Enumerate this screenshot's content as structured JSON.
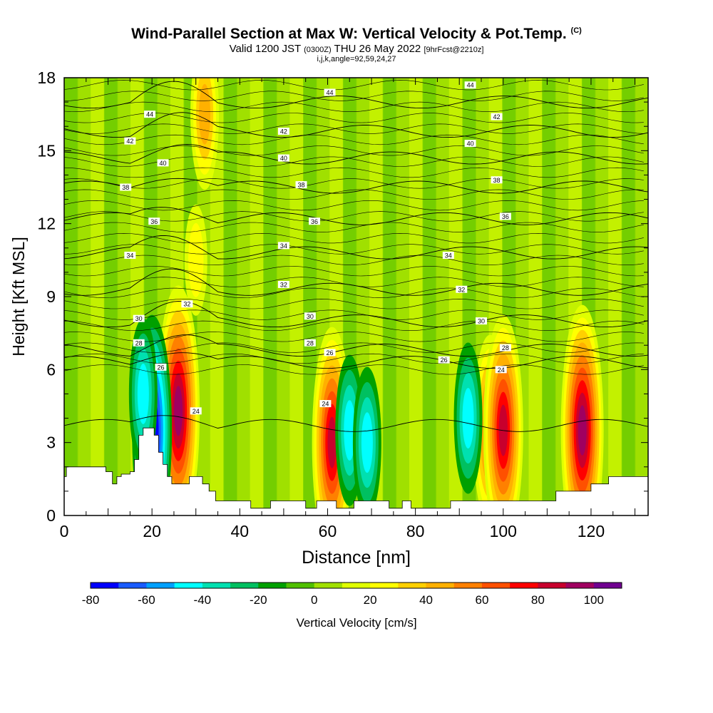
{
  "header": {
    "title": "Wind-Parallel Section at Max W: Vertical Velocity & Pot.Temp.",
    "copyright": "(C)",
    "valid_prefix": "Valid 1200 JST",
    "valid_utc": "(0300Z)",
    "valid_date": "THU 26 May 2022",
    "forecast": "[9hrFcst@2210z]",
    "indices": "i,j,k,angle=92,59,24,27"
  },
  "chart_data": {
    "type": "heatmap",
    "xlabel": "Distance [nm]",
    "ylabel": "Height [Kft MSL]",
    "xlim": [
      0,
      133
    ],
    "ylim": [
      0,
      18
    ],
    "x_ticks": [
      "0",
      "20",
      "40",
      "60",
      "80",
      "100",
      "120"
    ],
    "y_ticks": [
      "0",
      "3",
      "6",
      "9",
      "12",
      "15",
      "18"
    ],
    "colorbar": {
      "label": "Vertical Velocity [cm/s]",
      "tick_labels": [
        "-80",
        "-60",
        "-40",
        "-20",
        "0",
        "20",
        "40",
        "60",
        "80",
        "100"
      ],
      "levels": [
        -80,
        -70,
        -60,
        -50,
        -40,
        -30,
        -20,
        -10,
        0,
        10,
        20,
        30,
        40,
        50,
        60,
        70,
        80,
        90,
        100,
        110
      ],
      "colors": [
        "#0000ff",
        "#1a5cff",
        "#00a0ff",
        "#00ffff",
        "#00e0b0",
        "#00c060",
        "#00a000",
        "#50c000",
        "#a0e000",
        "#e0ff00",
        "#ffff00",
        "#ffd000",
        "#ffb000",
        "#ff8000",
        "#ff5000",
        "#ff0000",
        "#c8002d",
        "#a00060",
        "#700090"
      ]
    },
    "velocity_cores": [
      {
        "x": 26,
        "height": 4.3,
        "w": 90
      },
      {
        "x": 20,
        "height": 3.5,
        "w": -80
      },
      {
        "x": 18,
        "height": 5.0,
        "w": -45
      },
      {
        "x": 61,
        "height": 3.0,
        "w": 80
      },
      {
        "x": 65,
        "height": 3.5,
        "w": -45
      },
      {
        "x": 69,
        "height": 3.0,
        "w": -45
      },
      {
        "x": 97,
        "height": 3.5,
        "w": 65
      },
      {
        "x": 100,
        "height": 3.5,
        "w": 80
      },
      {
        "x": 118,
        "height": 3.5,
        "w": 90
      },
      {
        "x": 92,
        "height": 4.0,
        "w": -40
      },
      {
        "x": 32,
        "height": 16.5,
        "w": 40
      },
      {
        "x": 30,
        "height": 10.5,
        "w": 25
      }
    ],
    "isentropes": [
      {
        "label": "24",
        "height": 3.7
      },
      {
        "label": "26",
        "height": 6.3
      },
      {
        "label": "28",
        "height": 6.8
      },
      {
        "label": "30",
        "height": 8.0
      },
      {
        "label": "32",
        "height": 9.3
      },
      {
        "label": "34",
        "height": 10.8
      },
      {
        "label": "36",
        "height": 12.2
      },
      {
        "label": "38",
        "height": 13.5
      },
      {
        "label": "40",
        "height": 14.7
      },
      {
        "label": "42",
        "height": 15.8
      },
      {
        "label": "44",
        "height": 17.0
      }
    ],
    "isentrope_labels": [
      {
        "text": "44",
        "x": 19.5,
        "height": 16.5
      },
      {
        "text": "44",
        "x": 60.5,
        "height": 17.4
      },
      {
        "text": "44",
        "x": 92.5,
        "height": 17.7
      },
      {
        "text": "42",
        "x": 15,
        "height": 15.4
      },
      {
        "text": "42",
        "x": 50,
        "height": 15.8
      },
      {
        "text": "42",
        "x": 98.5,
        "height": 16.4
      },
      {
        "text": "40",
        "x": 22.5,
        "height": 14.5
      },
      {
        "text": "40",
        "x": 50,
        "height": 14.7
      },
      {
        "text": "40",
        "x": 92.5,
        "height": 15.3
      },
      {
        "text": "38",
        "x": 14,
        "height": 13.5
      },
      {
        "text": "38",
        "x": 54,
        "height": 13.6
      },
      {
        "text": "38",
        "x": 98.5,
        "height": 13.8
      },
      {
        "text": "36",
        "x": 20.5,
        "height": 12.1
      },
      {
        "text": "36",
        "x": 57,
        "height": 12.1
      },
      {
        "text": "36",
        "x": 100.5,
        "height": 12.3
      },
      {
        "text": "34",
        "x": 15,
        "height": 10.7
      },
      {
        "text": "34",
        "x": 50,
        "height": 11.1
      },
      {
        "text": "34",
        "x": 87.5,
        "height": 10.7
      },
      {
        "text": "32",
        "x": 28,
        "height": 8.7
      },
      {
        "text": "32",
        "x": 50,
        "height": 9.5
      },
      {
        "text": "32",
        "x": 90.5,
        "height": 9.3
      },
      {
        "text": "30",
        "x": 17,
        "height": 8.1
      },
      {
        "text": "30",
        "x": 56,
        "height": 8.2
      },
      {
        "text": "30",
        "x": 95,
        "height": 8.0
      },
      {
        "text": "28",
        "x": 17,
        "height": 7.1
      },
      {
        "text": "28",
        "x": 56,
        "height": 7.1
      },
      {
        "text": "28",
        "x": 100.5,
        "height": 6.9
      },
      {
        "text": "26",
        "x": 22,
        "height": 6.1
      },
      {
        "text": "26",
        "x": 60.5,
        "height": 6.7
      },
      {
        "text": "26",
        "x": 86.5,
        "height": 6.4
      },
      {
        "text": "24",
        "x": 99.5,
        "height": 6.0
      },
      {
        "text": "24",
        "x": 30,
        "height": 4.3
      },
      {
        "text": "24",
        "x": 59.5,
        "height": 4.6
      }
    ],
    "terrain": [
      [
        0,
        1.6
      ],
      [
        0.5,
        1.6
      ],
      [
        0.5,
        2.0
      ],
      [
        4.5,
        2.0
      ],
      [
        9.5,
        2.0
      ],
      [
        9.5,
        1.8
      ],
      [
        11,
        1.8
      ],
      [
        11,
        1.3
      ],
      [
        12,
        1.3
      ],
      [
        12,
        1.6
      ],
      [
        13,
        1.6
      ],
      [
        13,
        1.7
      ],
      [
        15,
        1.7
      ],
      [
        15,
        1.8
      ],
      [
        16,
        1.8
      ],
      [
        16,
        2.3
      ],
      [
        17,
        2.3
      ],
      [
        17,
        3.3
      ],
      [
        18,
        3.3
      ],
      [
        18,
        3.6
      ],
      [
        20.5,
        3.6
      ],
      [
        20.5,
        3.3
      ],
      [
        21.5,
        3.3
      ],
      [
        21.5,
        2.6
      ],
      [
        22.5,
        2.6
      ],
      [
        22.5,
        2.1
      ],
      [
        23.5,
        2.1
      ],
      [
        23.5,
        1.6
      ],
      [
        24.5,
        1.6
      ],
      [
        24.5,
        1.3
      ],
      [
        28.5,
        1.3
      ],
      [
        28.5,
        1.6
      ],
      [
        31.5,
        1.6
      ],
      [
        31.5,
        1.3
      ],
      [
        33,
        1.3
      ],
      [
        33,
        1.0
      ],
      [
        34.5,
        1.0
      ],
      [
        34.5,
        0.6
      ],
      [
        42.5,
        0.6
      ],
      [
        42.5,
        0.3
      ],
      [
        47,
        0.3
      ],
      [
        47,
        0.6
      ],
      [
        55,
        0.6
      ],
      [
        55,
        0.3
      ],
      [
        57.5,
        0.3
      ],
      [
        57.5,
        0.6
      ],
      [
        62,
        0.6
      ],
      [
        62,
        0.3
      ],
      [
        66,
        0.3
      ],
      [
        66,
        0.6
      ],
      [
        74,
        0.6
      ],
      [
        74,
        0.3
      ],
      [
        77,
        0.3
      ],
      [
        77,
        0.6
      ],
      [
        79,
        0.6
      ],
      [
        79,
        0.3
      ],
      [
        88,
        0.3
      ],
      [
        88,
        0.6
      ],
      [
        112,
        0.6
      ],
      [
        112,
        1.0
      ],
      [
        120,
        1.0
      ],
      [
        120,
        1.3
      ],
      [
        124,
        1.3
      ],
      [
        124,
        1.6
      ],
      [
        133,
        1.6
      ]
    ]
  }
}
